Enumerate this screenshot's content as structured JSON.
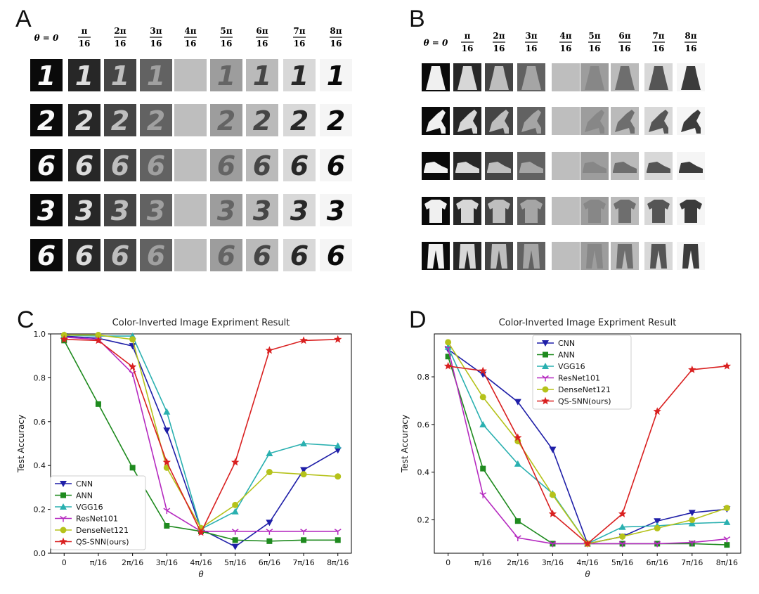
{
  "panels": {
    "a": {
      "letter": "A"
    },
    "b": {
      "letter": "B"
    },
    "c": {
      "letter": "C"
    },
    "d": {
      "letter": "D"
    }
  },
  "theta_headers": [
    {
      "main": "θ = 0",
      "num": "",
      "den": ""
    },
    {
      "main": "",
      "num": "π",
      "den": "16"
    },
    {
      "main": "",
      "num": "2π",
      "den": "16"
    },
    {
      "main": "",
      "num": "3π",
      "den": "16"
    },
    {
      "main": "",
      "num": "4π",
      "den": "16"
    },
    {
      "main": "",
      "num": "5π",
      "den": "16"
    },
    {
      "main": "",
      "num": "6π",
      "den": "16"
    },
    {
      "main": "",
      "num": "7π",
      "den": "16"
    },
    {
      "main": "",
      "num": "8π",
      "den": "16"
    }
  ],
  "mnist_digits": [
    "1",
    "2",
    "6",
    "3",
    "6"
  ],
  "fashion_items": [
    "dress",
    "sandal",
    "sneaker",
    "t-shirt",
    "trousers"
  ],
  "colors": {
    "CNN": "#1f1fa8",
    "ANN": "#1e8a1e",
    "VGG16": "#2ab0b0",
    "ResNet101": "#b52ac0",
    "DenseNet121": "#b5c21a",
    "QS-SNN(ours)": "#d92020"
  },
  "chart_data": [
    {
      "type": "line",
      "title": "Color-Inverted Image Expriment Result",
      "xlabel": "θ",
      "ylabel": "Test Accuracy",
      "categories": [
        "0",
        "π/16",
        "2π/16",
        "3π/16",
        "4π/16",
        "5π/16",
        "6π/16",
        "7π/16",
        "8π/16"
      ],
      "ylim": [
        0.0,
        1.0
      ],
      "yticks": [
        "0.0",
        "0.2",
        "0.4",
        "0.6",
        "0.8",
        "1.0"
      ],
      "legend_position": "lower-left",
      "series": [
        {
          "name": "CNN",
          "marker": "triangle-down",
          "values": [
            0.99,
            0.98,
            0.945,
            0.56,
            0.11,
            0.03,
            0.14,
            0.38,
            0.47
          ]
        },
        {
          "name": "ANN",
          "marker": "square",
          "values": [
            0.97,
            0.68,
            0.39,
            0.125,
            0.1,
            0.06,
            0.055,
            0.06,
            0.06
          ]
        },
        {
          "name": "VGG16",
          "marker": "triangle-up",
          "values": [
            0.995,
            0.99,
            0.99,
            0.645,
            0.11,
            0.19,
            0.455,
            0.5,
            0.49
          ]
        },
        {
          "name": "ResNet101",
          "marker": "tri-down",
          "values": [
            0.985,
            0.975,
            0.82,
            0.195,
            0.1,
            0.1,
            0.1,
            0.1,
            0.1
          ]
        },
        {
          "name": "DenseNet121",
          "marker": "circle",
          "values": [
            0.995,
            0.995,
            0.975,
            0.39,
            0.115,
            0.22,
            0.37,
            0.36,
            0.35
          ]
        },
        {
          "name": "QS-SNN(ours)",
          "marker": "star",
          "values": [
            0.975,
            0.97,
            0.85,
            0.415,
            0.095,
            0.415,
            0.925,
            0.97,
            0.975
          ]
        }
      ]
    },
    {
      "type": "line",
      "title": "Color-Inverted Image Expriment Result",
      "xlabel": "θ",
      "ylabel": "Test Accuracy",
      "categories": [
        "0",
        "π/16",
        "2π/16",
        "3π/16",
        "4π/16",
        "5π/16",
        "6π/16",
        "7π/16",
        "8π/16"
      ],
      "ylim": [
        0.06,
        0.98
      ],
      "yticks": [
        "0.2",
        "0.4",
        "0.6",
        "0.8"
      ],
      "legend_position": "upper-center",
      "series": [
        {
          "name": "CNN",
          "marker": "triangle-down",
          "values": [
            0.915,
            0.81,
            0.695,
            0.495,
            0.1,
            0.13,
            0.195,
            0.23,
            0.245
          ]
        },
        {
          "name": "ANN",
          "marker": "square",
          "values": [
            0.885,
            0.415,
            0.195,
            0.1,
            0.1,
            0.1,
            0.1,
            0.1,
            0.095
          ]
        },
        {
          "name": "VGG16",
          "marker": "triangle-up",
          "values": [
            0.925,
            0.6,
            0.435,
            0.31,
            0.1,
            0.17,
            0.175,
            0.185,
            0.19
          ]
        },
        {
          "name": "ResNet101",
          "marker": "tri-down",
          "values": [
            0.92,
            0.305,
            0.125,
            0.1,
            0.1,
            0.1,
            0.1,
            0.105,
            0.12
          ]
        },
        {
          "name": "DenseNet121",
          "marker": "circle",
          "values": [
            0.945,
            0.715,
            0.53,
            0.305,
            0.1,
            0.13,
            0.165,
            0.2,
            0.25
          ]
        },
        {
          "name": "QS-SNN(ours)",
          "marker": "star",
          "values": [
            0.845,
            0.825,
            0.545,
            0.225,
            0.1,
            0.225,
            0.655,
            0.83,
            0.845
          ]
        }
      ]
    }
  ]
}
